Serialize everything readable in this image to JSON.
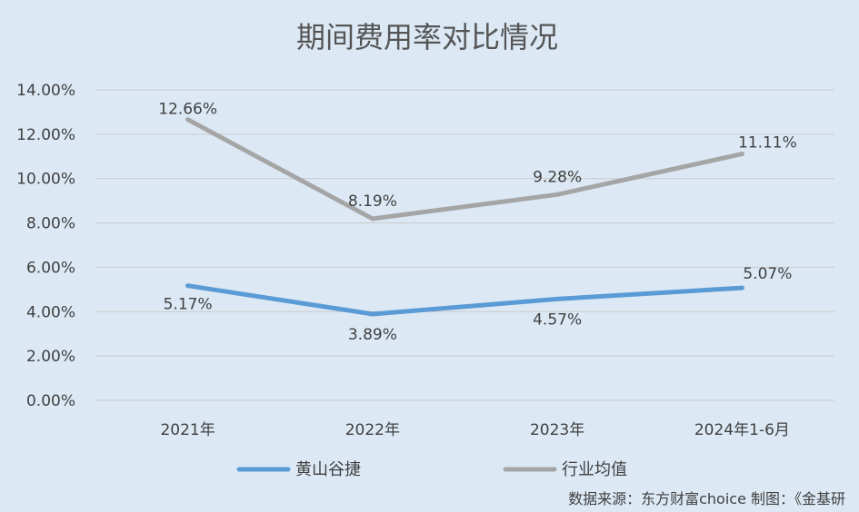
{
  "chart_data": {
    "type": "line",
    "title": "期间费用率对比情况",
    "categories": [
      "2021年",
      "2022年",
      "2023年",
      "2024年1-6月"
    ],
    "series": [
      {
        "name": "黄山谷捷",
        "values": [
          5.17,
          3.89,
          4.57,
          5.07
        ],
        "labels": [
          "5.17%",
          "3.89%",
          "4.57%",
          "5.07%"
        ],
        "color": "#5b9bd5"
      },
      {
        "name": "行业均值",
        "values": [
          12.66,
          8.19,
          9.28,
          11.11
        ],
        "labels": [
          "12.66%",
          "8.19%",
          "9.28%",
          "11.11%"
        ],
        "color": "#a5a5a5"
      }
    ],
    "yticks": [
      {
        "value": 0,
        "label": "0.00%"
      },
      {
        "value": 2,
        "label": "2.00%"
      },
      {
        "value": 4,
        "label": "4.00%"
      },
      {
        "value": 6,
        "label": "6.00%"
      },
      {
        "value": 8,
        "label": "8.00%"
      },
      {
        "value": 10,
        "label": "10.00%"
      },
      {
        "value": 12,
        "label": "12.00%"
      },
      {
        "value": 14,
        "label": "14.00%"
      }
    ],
    "ylim": [
      0,
      14
    ],
    "grid": true,
    "legend_position": "bottom",
    "xlabel": "",
    "ylabel": ""
  },
  "source_note": "数据来源：东方财富choice  制图：《金基研"
}
